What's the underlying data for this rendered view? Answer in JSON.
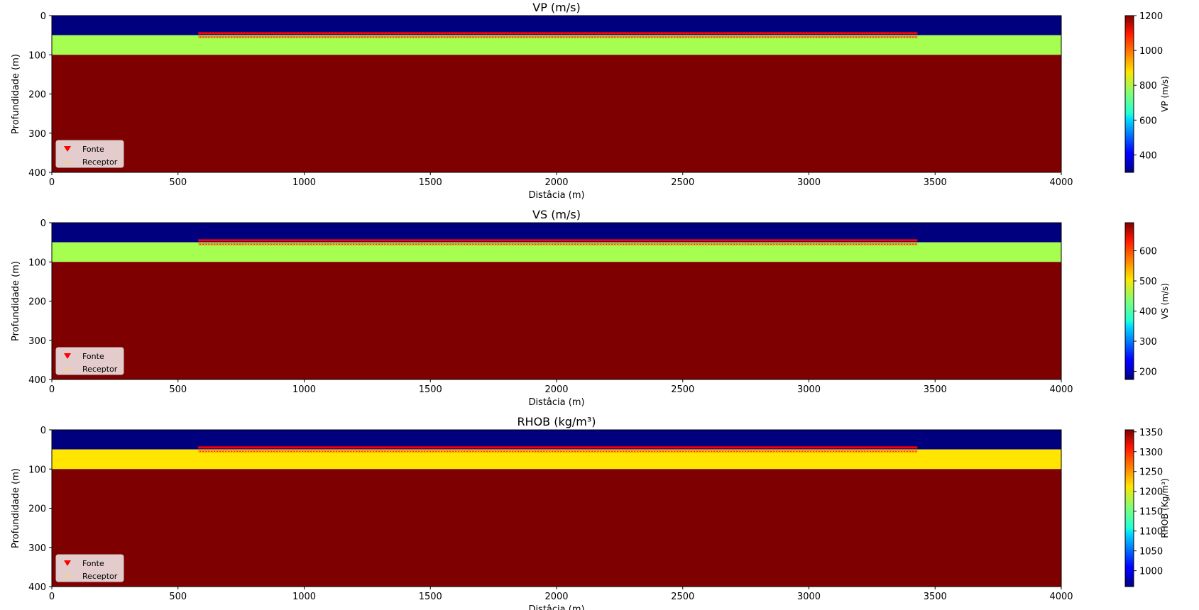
{
  "chart_data": [
    {
      "type": "heatmap",
      "title": "VP (m/s)",
      "xlabel": "Distâcia (m)",
      "ylabel": "Profundidade (m)",
      "xlim": [
        0,
        4000
      ],
      "ylim": [
        400,
        0
      ],
      "xticks": [
        "0",
        "500",
        "1000",
        "1500",
        "2000",
        "2500",
        "3000",
        "3500",
        "4000"
      ],
      "yticks": [
        "0",
        "100",
        "200",
        "300",
        "400"
      ],
      "layers": [
        {
          "top": 0,
          "bottom": 50,
          "value": 300,
          "color": "#00007f"
        },
        {
          "top": 50,
          "bottom": 100,
          "value": 750,
          "color": "#a6ff50"
        },
        {
          "top": 100,
          "bottom": 400,
          "value": 1200,
          "color": "#7f0000"
        }
      ],
      "colorbar": {
        "label": "VP (m/s)",
        "range": [
          300,
          1200
        ],
        "ticks": [
          "400",
          "600",
          "800",
          "1000",
          "1200"
        ]
      },
      "legend": {
        "position": "lower-left",
        "entries": [
          "Fonte",
          "Receptor"
        ]
      },
      "acquisition": {
        "source_x": [
          580,
          3430
        ],
        "source_depth": 45,
        "receiver_x": [
          580,
          3430
        ],
        "receiver_depth": 55
      }
    },
    {
      "type": "heatmap",
      "title": "VS (m/s)",
      "xlabel": "Distâcia (m)",
      "ylabel": "Profundidade (m)",
      "xlim": [
        0,
        4000
      ],
      "ylim": [
        400,
        0
      ],
      "xticks": [
        "0",
        "500",
        "1000",
        "1500",
        "2000",
        "2500",
        "3000",
        "3500",
        "4000"
      ],
      "yticks": [
        "0",
        "100",
        "200",
        "300",
        "400"
      ],
      "layers": [
        {
          "top": 0,
          "bottom": 50,
          "value": 173,
          "color": "#00007f"
        },
        {
          "top": 50,
          "bottom": 100,
          "value": 433,
          "color": "#a6ff50"
        },
        {
          "top": 100,
          "bottom": 400,
          "value": 693,
          "color": "#7f0000"
        }
      ],
      "colorbar": {
        "label": "VS (m/s)",
        "range": [
          173,
          693
        ],
        "ticks": [
          "200",
          "300",
          "400",
          "500",
          "600"
        ]
      },
      "legend": {
        "position": "lower-left",
        "entries": [
          "Fonte",
          "Receptor"
        ]
      },
      "acquisition": {
        "source_x": [
          580,
          3430
        ],
        "source_depth": 45,
        "receiver_x": [
          580,
          3430
        ],
        "receiver_depth": 55
      }
    },
    {
      "type": "heatmap",
      "title": "RHOB (kg/m³)",
      "xlabel": "Distâcia (m)",
      "ylabel": "Profundidade (m)",
      "xlim": [
        0,
        4000
      ],
      "ylim": [
        400,
        0
      ],
      "xticks": [
        "0",
        "500",
        "1000",
        "1500",
        "2000",
        "2500",
        "3000",
        "3500",
        "4000"
      ],
      "yticks": [
        "0",
        "100",
        "200",
        "300",
        "400"
      ],
      "layers": [
        {
          "top": 0,
          "bottom": 50,
          "value": 960,
          "color": "#00007f"
        },
        {
          "top": 50,
          "bottom": 100,
          "value": 1250,
          "color": "#ffe500"
        },
        {
          "top": 100,
          "bottom": 400,
          "value": 1360,
          "color": "#7f0000"
        }
      ],
      "colorbar": {
        "label": "RHOB (Kg/m³)",
        "range": [
          960,
          1355
        ],
        "ticks": [
          "1000",
          "1050",
          "1100",
          "1150",
          "1200",
          "1250",
          "1300",
          "1350"
        ]
      },
      "legend": {
        "position": "lower-left",
        "entries": [
          "Fonte",
          "Receptor"
        ]
      },
      "acquisition": {
        "source_x": [
          580,
          3430
        ],
        "source_depth": 45,
        "receiver_x": [
          580,
          3430
        ],
        "receiver_depth": 55
      }
    }
  ]
}
